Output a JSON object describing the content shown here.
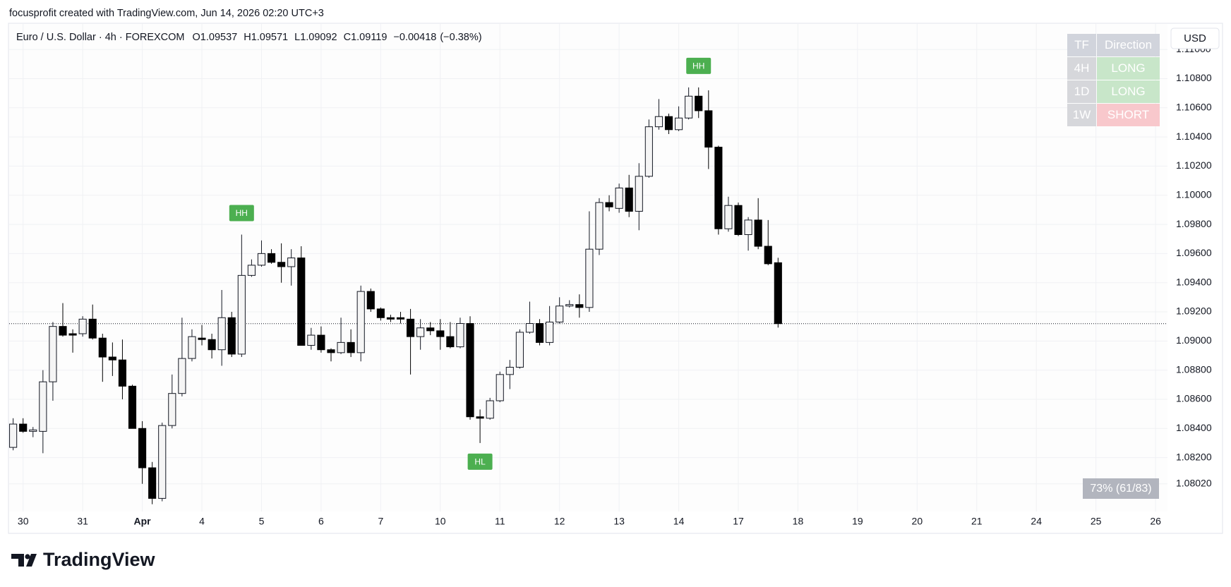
{
  "watermark": "focusprofit created with TradingView.com, Jun 14, 2026 02:20 UTC+3",
  "footer": {
    "brand": "TradingView"
  },
  "currency_button": "USD",
  "signal_table": {
    "header": [
      "TF",
      "Direction"
    ],
    "rows": [
      [
        "4H",
        "LONG"
      ],
      [
        "1D",
        "LONG"
      ],
      [
        "1W",
        "SHORT"
      ]
    ],
    "header_color": "#d1d4dc",
    "tf_color": "#d6d7db",
    "row_colors": [
      "#c8e6c9",
      "#c8e6c9",
      "#f8c8cc"
    ]
  },
  "stats_badge": "73% (61/83)",
  "chart_data": {
    "type": "candlestick",
    "title": "Euro / U.S. Dollar · 4h · FOREXCOM",
    "ohlc_legend": [
      {
        "label": "O",
        "value": 1.09537
      },
      {
        "label": "H",
        "value": 1.09571
      },
      {
        "label": "L",
        "value": 1.09092
      },
      {
        "label": "C",
        "value": 1.09119
      }
    ],
    "change": {
      "value": -0.00418,
      "label": "−0.00418"
    },
    "change_percent": {
      "value": -0.38,
      "label": "(−0.38%)"
    },
    "open": [
      1.0827,
      1.0843,
      1.0838,
      1.0838,
      1.0872,
      1.091,
      1.0905,
      1.0905,
      1.0915,
      1.0902,
      1.0889,
      1.0887,
      1.0869,
      1.084,
      1.0813,
      1.0792,
      1.0842,
      1.0864,
      1.0888,
      1.0902,
      1.0901,
      1.0894,
      1.0916,
      1.0891,
      1.0945,
      1.0952,
      1.096,
      1.0954,
      1.0951,
      1.0957,
      1.0897,
      1.0904,
      1.0894,
      1.0892,
      1.0899,
      1.0892,
      1.0934,
      1.0922,
      1.0916,
      1.0916,
      1.0915,
      1.0903,
      1.0909,
      1.0907,
      1.0903,
      1.0896,
      1.0912,
      1.0848,
      1.0847,
      1.0859,
      1.0877,
      1.0882,
      1.0906,
      1.0912,
      1.0899,
      1.0913,
      1.0924,
      1.0925,
      1.0923,
      1.0963,
      1.0995,
      1.0991,
      1.1005,
      1.0989,
      1.1013,
      1.1047,
      1.1054,
      1.1045,
      1.1053,
      1.1068,
      1.1058,
      1.1033,
      1.0977,
      1.0993,
      1.0973,
      1.0983,
      1.0965,
      1.09537
    ],
    "high": [
      1.0847,
      1.0847,
      1.0841,
      1.088,
      1.0913,
      1.0926,
      1.0908,
      1.0917,
      1.0925,
      1.0905,
      1.0899,
      1.0901,
      1.087,
      1.0845,
      1.0817,
      1.0844,
      1.0877,
      1.0916,
      1.0908,
      1.0911,
      1.0905,
      1.0935,
      1.092,
      1.0973,
      1.0956,
      1.0969,
      1.0963,
      1.0967,
      1.0963,
      1.0965,
      1.0909,
      1.091,
      1.0895,
      1.0916,
      1.0908,
      1.0938,
      1.0936,
      1.0923,
      1.0918,
      1.092,
      1.0922,
      1.0915,
      1.0913,
      1.0915,
      1.0913,
      1.0916,
      1.0917,
      1.0853,
      1.0861,
      1.0879,
      1.0887,
      1.0908,
      1.0927,
      1.0915,
      1.0924,
      1.093,
      1.0928,
      1.0932,
      1.0989,
      1.0998,
      1.1,
      1.1008,
      1.1014,
      1.1022,
      1.1052,
      1.1066,
      1.1056,
      1.1061,
      1.1074,
      1.1074,
      1.1072,
      1.1034,
      1.0999,
      1.0995,
      1.0985,
      1.0998,
      1.0983,
      1.09571
    ],
    "low": [
      1.0825,
      1.0837,
      1.0834,
      1.0823,
      1.0859,
      1.0903,
      1.0892,
      1.0903,
      1.0901,
      1.0872,
      1.0876,
      1.086,
      1.084,
      1.0802,
      1.0788,
      1.079,
      1.084,
      1.0862,
      1.0886,
      1.0897,
      1.0888,
      1.0883,
      1.0889,
      1.0889,
      1.0944,
      1.0951,
      1.0953,
      1.094,
      1.0938,
      1.0897,
      1.0894,
      1.0892,
      1.0886,
      1.0891,
      1.0889,
      1.0886,
      1.092,
      1.0914,
      1.0913,
      1.0912,
      1.0877,
      1.0894,
      1.0904,
      1.0894,
      1.0895,
      1.0895,
      1.0846,
      1.083,
      1.0846,
      1.0858,
      1.0867,
      1.0881,
      1.0905,
      1.0897,
      1.0897,
      1.0912,
      1.0923,
      1.0916,
      1.092,
      1.0959,
      1.0989,
      1.0988,
      1.0985,
      1.0976,
      1.1012,
      1.1045,
      1.1042,
      1.1044,
      1.1052,
      1.1053,
      1.1018,
      1.0973,
      1.0975,
      1.0972,
      1.0962,
      1.0963,
      1.0952,
      1.09092
    ],
    "close": [
      1.0843,
      1.0838,
      1.0839,
      1.0872,
      1.091,
      1.0904,
      1.0904,
      1.0915,
      1.0902,
      1.0889,
      1.0887,
      1.0869,
      1.084,
      1.0813,
      1.0792,
      1.0842,
      1.0864,
      1.0888,
      1.0903,
      1.0901,
      1.0894,
      1.0916,
      1.0891,
      1.0945,
      1.0952,
      1.096,
      1.0954,
      1.0951,
      1.0957,
      1.0897,
      1.0904,
      1.0894,
      1.0892,
      1.0899,
      1.0892,
      1.0934,
      1.0922,
      1.0916,
      1.0915,
      1.0915,
      1.0903,
      1.0909,
      1.0907,
      1.0903,
      1.0896,
      1.0912,
      1.0848,
      1.0847,
      1.0859,
      1.0877,
      1.0882,
      1.0906,
      1.0912,
      1.0899,
      1.0913,
      1.0924,
      1.0925,
      1.0923,
      1.0963,
      1.0995,
      1.0992,
      1.1005,
      1.0989,
      1.1013,
      1.1047,
      1.1054,
      1.1045,
      1.1053,
      1.1068,
      1.1058,
      1.1033,
      1.0977,
      1.0993,
      1.0973,
      1.0983,
      1.0965,
      1.0953,
      1.09119
    ],
    "up_color": "#f5f5f5",
    "down_color": "#000000",
    "outline_color": "#131722",
    "xlim": [
      -0.4,
      116.2
    ],
    "xticks": [
      {
        "value": 1,
        "label": "30"
      },
      {
        "value": 7,
        "label": "31"
      },
      {
        "value": 13,
        "label": "Apr",
        "bold": true
      },
      {
        "value": 19,
        "label": "4"
      },
      {
        "value": 25,
        "label": "5"
      },
      {
        "value": 31,
        "label": "6"
      },
      {
        "value": 37,
        "label": "7"
      },
      {
        "value": 43,
        "label": "10"
      },
      {
        "value": 49,
        "label": "11"
      },
      {
        "value": 55,
        "label": "12"
      },
      {
        "value": 61,
        "label": "13"
      },
      {
        "value": 67,
        "label": "14"
      },
      {
        "value": 73,
        "label": "17"
      },
      {
        "value": 79,
        "label": "18"
      },
      {
        "value": 85,
        "label": "19"
      },
      {
        "value": 91,
        "label": "20"
      },
      {
        "value": 97,
        "label": "21"
      },
      {
        "value": 103,
        "label": "24"
      },
      {
        "value": 109,
        "label": "25"
      },
      {
        "value": 115,
        "label": "26"
      }
    ],
    "ylim": [
      1.0783,
      1.1118
    ],
    "yticks": [
      {
        "value": 1.0802,
        "label": "1.08020"
      },
      {
        "value": 1.082,
        "label": "1.08200"
      },
      {
        "value": 1.084,
        "label": "1.08400"
      },
      {
        "value": 1.086,
        "label": "1.08600"
      },
      {
        "value": 1.088,
        "label": "1.08800"
      },
      {
        "value": 1.09,
        "label": "1.09000"
      },
      {
        "value": 1.092,
        "label": "1.09200"
      },
      {
        "value": 1.094,
        "label": "1.09400"
      },
      {
        "value": 1.096,
        "label": "1.09600"
      },
      {
        "value": 1.098,
        "label": "1.09800"
      },
      {
        "value": 1.1,
        "label": "1.10000"
      },
      {
        "value": 1.102,
        "label": "1.10200"
      },
      {
        "value": 1.104,
        "label": "1.10400"
      },
      {
        "value": 1.106,
        "label": "1.10600"
      },
      {
        "value": 1.108,
        "label": "1.10800"
      },
      {
        "value": 1.11,
        "label": "1.11000"
      }
    ],
    "grid": true,
    "last_price_line": true,
    "annotation_color": "#4caf50",
    "annotations": [
      {
        "text": "HH",
        "candle": 23,
        "position": "above"
      },
      {
        "text": "HH",
        "candle": 69,
        "position": "above"
      },
      {
        "text": "HL",
        "candle": 47,
        "position": "below"
      }
    ]
  }
}
